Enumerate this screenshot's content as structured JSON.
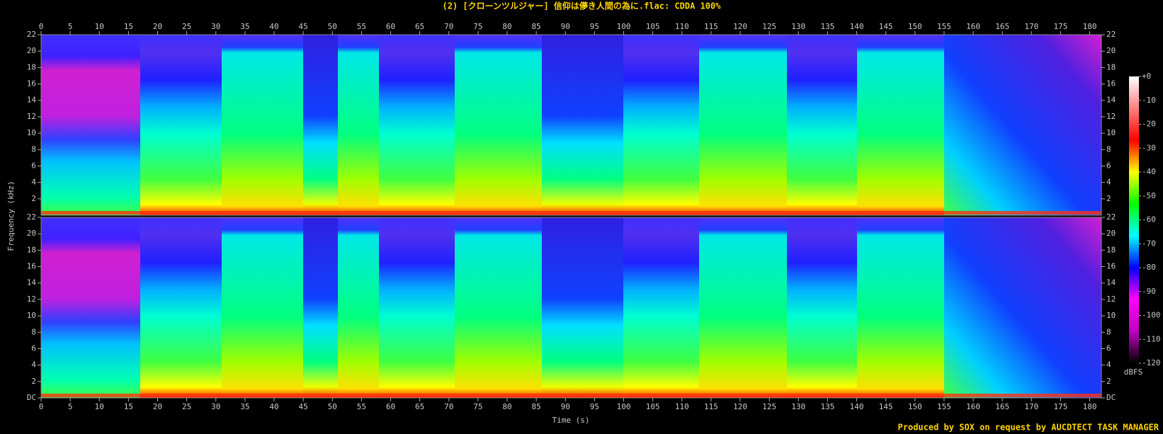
{
  "chart_data": {
    "type": "spectrogram",
    "title": "(2) [クローンツルジャー] 信仰は儚き人間の為に.flac: CDDA 100%",
    "xlabel": "Time (s)",
    "ylabel": "Frequency (kHz)",
    "xlim": [
      0,
      182
    ],
    "xticks": [
      0,
      5,
      10,
      15,
      20,
      25,
      30,
      35,
      40,
      45,
      50,
      55,
      60,
      65,
      70,
      75,
      80,
      85,
      90,
      95,
      100,
      105,
      110,
      115,
      120,
      125,
      130,
      135,
      140,
      145,
      150,
      155,
      160,
      165,
      170,
      175,
      180
    ],
    "ylim": [
      0,
      22
    ],
    "yticks": [
      {
        "value": 0,
        "label": "DC"
      },
      2,
      4,
      6,
      8,
      10,
      12,
      14,
      16,
      18,
      20,
      22
    ],
    "colorbar": {
      "label": "dBFS",
      "lim": [
        -120,
        0
      ],
      "ticks": [
        {
          "value": 0,
          "label": "+0"
        },
        -10,
        -20,
        -30,
        -40,
        -50,
        -60,
        -70,
        -80,
        -90,
        -100,
        -110,
        -120
      ],
      "colormap": [
        "#000000",
        "#c000c0",
        "#ff00ff",
        "#0000ff",
        "#00ffff",
        "#00ff00",
        "#ffff00",
        "#ff0000",
        "#ff8080",
        "#ffffff"
      ]
    },
    "footer": "Produced by SOX on request by AUCDTECT TASK MANAGER"
  }
}
